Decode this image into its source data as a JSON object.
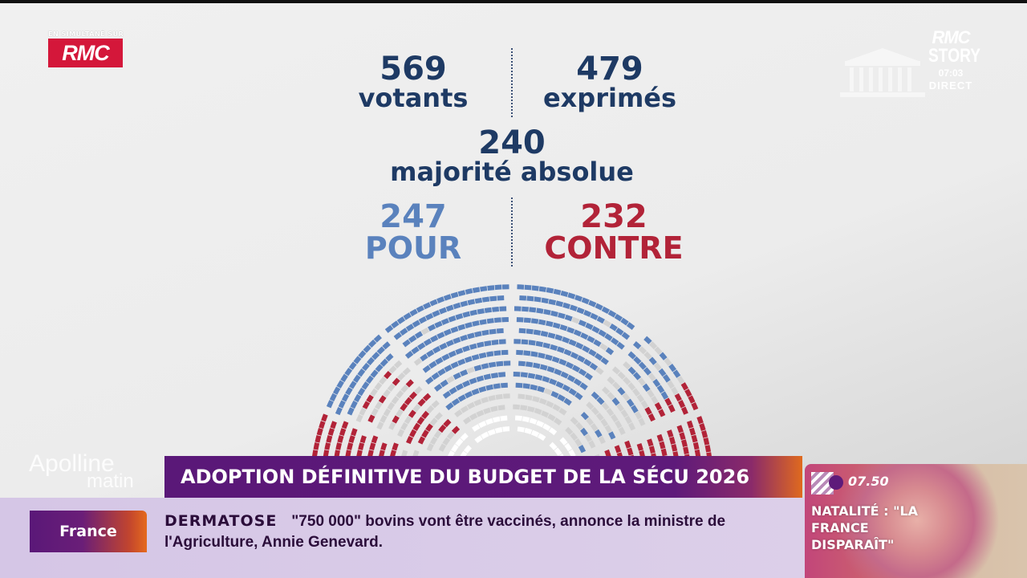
{
  "channel": {
    "simulcast_label": "EN SIMULTANÉ SUR",
    "rmc_logo": "RMC",
    "story_logo_top": "RMC",
    "story_logo_bottom": "STORY",
    "clock": "07:03",
    "live": "DIRECT",
    "building_icon": "assemblee-nationale-icon"
  },
  "vote": {
    "votants": {
      "value": "569",
      "label": "votants"
    },
    "exprimes": {
      "value": "479",
      "label": "exprimés"
    },
    "majorite": {
      "value": "240",
      "label": "majorité absolue"
    },
    "pour": {
      "value": "247",
      "label": "POUR"
    },
    "contre": {
      "value": "232",
      "label": "CONTRE"
    }
  },
  "hemicycle": {
    "pour": 247,
    "contre": 232,
    "colors": {
      "pour": "#5a82bd",
      "contre": "#b22338",
      "other": "#d2d2d2"
    }
  },
  "show": {
    "name": "Apolline",
    "subtitle": "matin"
  },
  "banner": {
    "headline": "ADOPTION DÉFINITIVE DU BUDGET DE LA SÉCU 2026"
  },
  "ticker": {
    "category": "France",
    "keyword": "DERMATOSE",
    "text": "\"750 000\" bovins vont être vaccinés, annonce la ministre de l'Agriculture, Annie Genevard."
  },
  "next_program": {
    "time": "07.50",
    "title": "NATALITÉ : \"LA FRANCE DISPARAÎT\""
  },
  "colors": {
    "navy": "#1e3a64",
    "blue": "#5a82bd",
    "red": "#b22338",
    "purple": "#5e1a7a",
    "orange": "#e56a1c"
  }
}
